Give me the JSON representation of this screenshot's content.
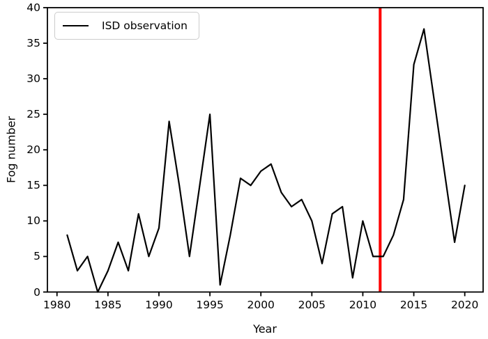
{
  "figure": {
    "xlabel": "Year",
    "ylabel": "Fog number",
    "legend": [
      {
        "label": "ISD observation",
        "color": "#000000"
      }
    ]
  },
  "colors": {
    "line": "#000000",
    "vline": "#ff0000",
    "frame": "#000000",
    "background": "#ffffff",
    "legend_border": "#cccccc"
  },
  "chart_data": {
    "type": "line",
    "title": "",
    "xlabel": "Year",
    "ylabel": "Fog number",
    "xlim": [
      1979.06,
      2021.8
    ],
    "ylim": [
      0,
      40
    ],
    "grid": false,
    "legend_position": "upper left",
    "x_ticks": [
      1980,
      1985,
      1990,
      1995,
      2000,
      2005,
      2010,
      2015,
      2020
    ],
    "x_tick_labels": [
      "1980",
      "1985",
      "1990",
      "1995",
      "2000",
      "2005",
      "2010",
      "2015",
      "2020"
    ],
    "y_ticks": [
      0,
      5,
      10,
      15,
      20,
      25,
      30,
      35,
      40
    ],
    "y_tick_labels": [
      "0",
      "5",
      "10",
      "15",
      "20",
      "25",
      "30",
      "35",
      "40"
    ],
    "series": [
      {
        "name": "ISD observation",
        "color": "#000000",
        "x": [
          1981,
          1982,
          1983,
          1984,
          1985,
          1986,
          1987,
          1988,
          1989,
          1990,
          1991,
          1992,
          1993,
          1994,
          1995,
          1996,
          1997,
          1998,
          1999,
          2000,
          2001,
          2002,
          2003,
          2004,
          2005,
          2006,
          2007,
          2008,
          2009,
          2010,
          2011,
          2012,
          2013,
          2014,
          2015,
          2016,
          2017,
          2018,
          2019,
          2020
        ],
        "values": [
          8,
          3,
          5,
          0,
          3,
          7,
          3,
          11,
          5,
          9,
          24,
          15,
          5,
          15,
          25,
          1,
          8,
          16,
          15,
          17,
          18,
          14,
          12,
          13,
          10,
          4,
          11,
          12,
          2,
          10,
          5,
          5,
          8,
          13,
          32,
          37,
          27,
          17,
          7,
          15
        ]
      }
    ],
    "annotations": [
      {
        "type": "vline",
        "x": 2011.7,
        "color": "#ff0000",
        "width": 4
      }
    ]
  }
}
